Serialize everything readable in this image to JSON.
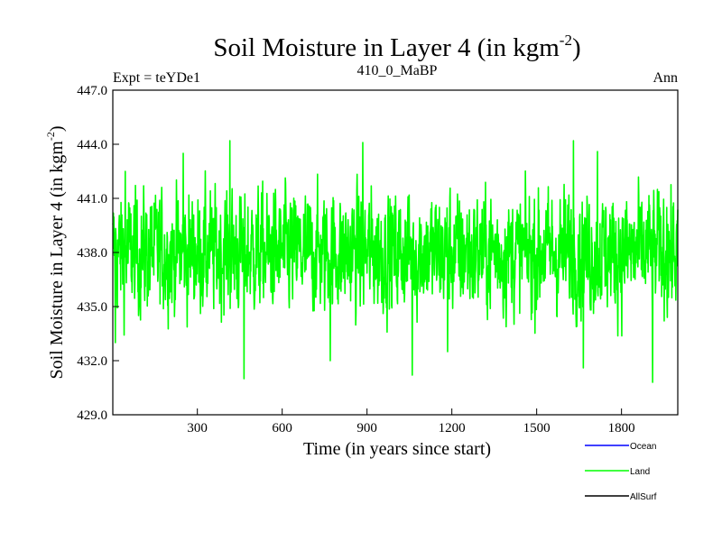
{
  "chart_data": {
    "type": "line",
    "title_main": "Soil Moisture in Layer 4 (in kgm",
    "title_sup": "-2",
    "title_close": ")",
    "left_label": "Expt = teYDe1",
    "center_label": "410_0_MaBP",
    "right_label": "Ann",
    "xlabel": "Time (in years since start)",
    "ylabel_main": "Soil Moisture in Layer 4 (in kgm",
    "ylabel_sup": "-2",
    "ylabel_close": ")",
    "xlim": [
      1,
      1999
    ],
    "ylim": [
      429.0,
      447.0
    ],
    "x_ticks": [
      300,
      600,
      900,
      1200,
      1500,
      1800
    ],
    "x_tick_labels": [
      "300",
      "600",
      "900",
      "1200",
      "1500",
      "1800"
    ],
    "y_ticks": [
      429.0,
      432.0,
      435.0,
      438.0,
      441.0,
      444.0,
      447.0
    ],
    "y_tick_labels": [
      "429.0",
      "432.0",
      "435.0",
      "438.0",
      "441.0",
      "444.0",
      "447.0"
    ],
    "series": [
      {
        "name": "Land",
        "color": "#00ff00",
        "x_start": 1,
        "x_end": 1999,
        "n_points": 1999,
        "mean": 438.0,
        "std": 1.8,
        "notable_points": [
          {
            "x": 10,
            "y": 433.0
          },
          {
            "x": 45,
            "y": 442.5
          },
          {
            "x": 250,
            "y": 443.5
          },
          {
            "x": 415,
            "y": 444.2
          },
          {
            "x": 465,
            "y": 431.0
          },
          {
            "x": 770,
            "y": 432.0
          },
          {
            "x": 885,
            "y": 444.1
          },
          {
            "x": 1060,
            "y": 431.2
          },
          {
            "x": 1185,
            "y": 432.5
          },
          {
            "x": 1630,
            "y": 444.2
          },
          {
            "x": 1665,
            "y": 431.6
          },
          {
            "x": 1715,
            "y": 443.6
          },
          {
            "x": 1910,
            "y": 430.8
          },
          {
            "x": 1960,
            "y": 440.5
          }
        ]
      },
      {
        "name": "Ocean",
        "color": "#0000ff",
        "values": []
      },
      {
        "name": "AllSurf",
        "color": "#000000",
        "values": []
      }
    ],
    "legend": [
      {
        "name": "Ocean",
        "color": "#0000ff"
      },
      {
        "name": "Land",
        "color": "#00ff00"
      },
      {
        "name": "AllSurf",
        "color": "#000000"
      }
    ],
    "legend_position": "bottom-right"
  }
}
